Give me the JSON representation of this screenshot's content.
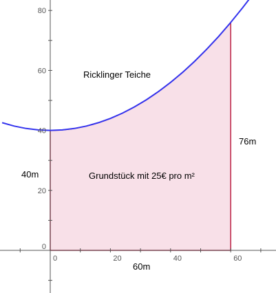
{
  "chart_data": {
    "type": "area",
    "title": "",
    "xlabel": "",
    "ylabel": "",
    "xlim": [
      -16,
      76
    ],
    "ylim": [
      -15,
      84
    ],
    "x_ticks": [
      0,
      20,
      40,
      60
    ],
    "y_ticks": [
      0,
      20,
      40,
      60,
      80
    ],
    "grid": false,
    "curve": {
      "description": "parabola through (0,40) and (60,76)",
      "equation": "y = 0.01 * x^2 + 40",
      "x": [
        -16,
        -12,
        -8,
        -4,
        0,
        4,
        8,
        12,
        16,
        20,
        24,
        28,
        32,
        36,
        40,
        44,
        48,
        52,
        56,
        60,
        64,
        66.7
      ],
      "y": [
        42.56,
        41.44,
        40.64,
        40.16,
        40.0,
        40.16,
        40.64,
        41.44,
        42.56,
        44.0,
        45.76,
        47.84,
        50.24,
        52.96,
        56.0,
        59.36,
        63.04,
        67.04,
        71.36,
        76.0,
        80.96,
        84.5
      ]
    },
    "shaded_region": {
      "x_from": 0,
      "x_to": 60,
      "bottom": 0,
      "top": "curve"
    },
    "annotations": {
      "lake": "Ricklinger Teiche",
      "plot": "Grundstück mit 25€ pro m²",
      "left_side": "40m",
      "right_side": "76m",
      "bottom_side": "60m"
    },
    "colors": {
      "curve": "#3333ee",
      "fill": "#f8e0e8",
      "border": "#bb2244",
      "axis": "#555555"
    }
  }
}
